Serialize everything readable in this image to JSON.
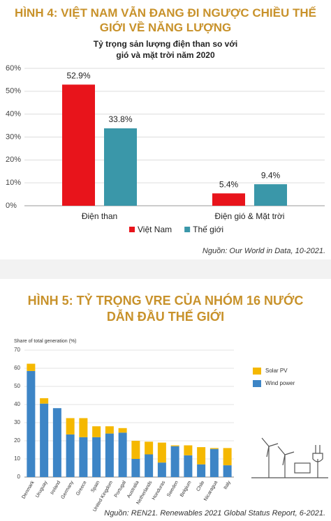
{
  "chart_data": [
    {
      "type": "bar",
      "title": "HÌNH 4: VIỆT NAM VẪN ĐANG ĐI NGƯỢC CHIỀU THẾ GIỚI VỀ NĂNG LƯỢNG",
      "subtitle": "Tỷ trọng sản lượng điện than so với gió và mặt trời năm 2020",
      "categories": [
        "Điện than",
        "Điện gió & Mặt trời"
      ],
      "series": [
        {
          "name": "Việt Nam",
          "color": "#e8141b",
          "values": [
            52.9,
            5.4
          ],
          "value_labels": [
            "52.9%",
            "5.4%"
          ]
        },
        {
          "name": "Thế giới",
          "color": "#3a97a9",
          "values": [
            33.8,
            9.4
          ],
          "value_labels": [
            "33.8%",
            "9.4%"
          ]
        }
      ],
      "ylim": [
        0,
        60
      ],
      "yticks": [
        {
          "value": 0,
          "label": "0%"
        },
        {
          "value": 10,
          "label": "10%"
        },
        {
          "value": 20,
          "label": "20%"
        },
        {
          "value": 30,
          "label": "30%"
        },
        {
          "value": 40,
          "label": "40%"
        },
        {
          "value": 50,
          "label": "50%"
        },
        {
          "value": 60,
          "label": "60%"
        }
      ],
      "grid": true,
      "legend": "bottom",
      "source": "Nguồn: Our World in Data, 10-2021."
    },
    {
      "type": "stacked_bar",
      "title": "HÌNH 5: TỶ TRỌNG VRE CỦA NHÓM 16 NƯỚC DẪN ĐẦU THẾ GIỚI",
      "y_label": "Share of total generation (%)",
      "categories": [
        "Denmark",
        "Uruguay",
        "Ireland",
        "Germany",
        "Greece",
        "Spain",
        "United Kingdom",
        "Portugal",
        "Australia",
        "Netherlands",
        "Honduras",
        "Sweden",
        "Belgium",
        "Chile",
        "Nicaragua",
        "Italy"
      ],
      "series": [
        {
          "name": "Wind power",
          "color": "#3d85c6",
          "values": [
            58.5,
            40.5,
            38,
            23.5,
            22,
            22,
            24,
            24.5,
            10,
            12.5,
            8,
            17,
            12,
            7,
            15.5,
            6.5
          ]
        },
        {
          "name": "Solar PV",
          "color": "#f5b800",
          "values": [
            4,
            3,
            0,
            9,
            10.5,
            6,
            4,
            2.5,
            10,
            7,
            11,
            0.5,
            5.5,
            9.5,
            0.5,
            9.5
          ]
        }
      ],
      "ylim": [
        0,
        70
      ],
      "yticks": [
        0,
        10,
        20,
        30,
        40,
        50,
        60,
        70
      ],
      "grid": true,
      "legend": "right",
      "source": "Nguồn: REN21. Renewables 2021 Global Status Report, 6-2021."
    }
  ]
}
